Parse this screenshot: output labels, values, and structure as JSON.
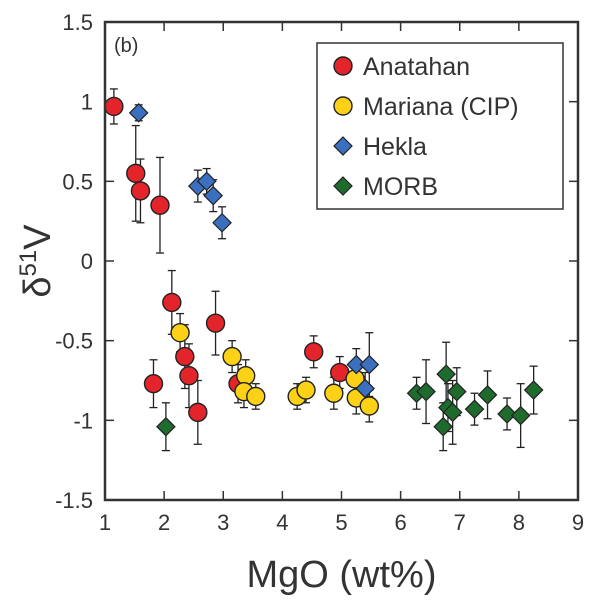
{
  "chart_data": {
    "type": "scatter",
    "panel_label": "(b)",
    "xlabel": "MgO (wt%)",
    "ylabel_base": "δ",
    "ylabel_sup": "51",
    "ylabel_tail": "V",
    "xlim": [
      1,
      9
    ],
    "ylim": [
      -1.5,
      1.5
    ],
    "x_ticks": [
      1,
      2,
      3,
      4,
      5,
      6,
      7,
      8,
      9
    ],
    "y_ticks": [
      -1.5,
      -1,
      -0.5,
      0,
      0.5,
      1,
      1.5
    ],
    "x_tick_labels": [
      "1",
      "2",
      "3",
      "4",
      "5",
      "6",
      "7",
      "8",
      "9"
    ],
    "y_tick_labels": [
      "-1.5",
      "-1",
      "-0.5",
      "0",
      "0.5",
      "1",
      "1.5"
    ],
    "legend_position": "top-right",
    "series": [
      {
        "name": "Anatahan",
        "marker": "circle",
        "color": "#e3242b",
        "points": [
          {
            "x": 1.15,
            "y": 0.97,
            "err": 0.11
          },
          {
            "x": 1.52,
            "y": 0.55,
            "err": 0.3
          },
          {
            "x": 1.6,
            "y": 0.44,
            "err": 0.2
          },
          {
            "x": 1.93,
            "y": 0.35,
            "err": 0.3
          },
          {
            "x": 2.13,
            "y": -0.26,
            "err": 0.2
          },
          {
            "x": 2.87,
            "y": -0.39,
            "err": 0.2
          },
          {
            "x": 2.35,
            "y": -0.6,
            "err": 0.2
          },
          {
            "x": 2.42,
            "y": -0.72,
            "err": 0.2
          },
          {
            "x": 1.82,
            "y": -0.77,
            "err": 0.15
          },
          {
            "x": 2.57,
            "y": -0.95,
            "err": 0.2
          },
          {
            "x": 3.25,
            "y": -0.77,
            "err": 0.12
          },
          {
            "x": 4.53,
            "y": -0.57,
            "err": 0.1
          },
          {
            "x": 4.97,
            "y": -0.7,
            "err": 0.1
          }
        ]
      },
      {
        "name": "Mariana (CIP)",
        "marker": "circle",
        "color": "#fcd116",
        "points": [
          {
            "x": 2.27,
            "y": -0.45,
            "err": 0.12
          },
          {
            "x": 3.15,
            "y": -0.6,
            "err": 0.1
          },
          {
            "x": 3.38,
            "y": -0.72,
            "err": 0.1
          },
          {
            "x": 3.35,
            "y": -0.82,
            "err": 0.1
          },
          {
            "x": 3.55,
            "y": -0.85,
            "err": 0.08
          },
          {
            "x": 4.25,
            "y": -0.85,
            "err": 0.08
          },
          {
            "x": 4.4,
            "y": -0.81,
            "err": 0.08
          },
          {
            "x": 4.87,
            "y": -0.83,
            "err": 0.1
          },
          {
            "x": 5.23,
            "y": -0.74,
            "err": 0.1
          },
          {
            "x": 5.25,
            "y": -0.86,
            "err": 0.1
          },
          {
            "x": 5.47,
            "y": -0.91,
            "err": 0.1
          }
        ]
      },
      {
        "name": "Hekla",
        "marker": "diamond",
        "color": "#3b6fbf",
        "points": [
          {
            "x": 1.57,
            "y": 0.93,
            "err": 0.05
          },
          {
            "x": 2.57,
            "y": 0.47,
            "err": 0.1
          },
          {
            "x": 2.72,
            "y": 0.5,
            "err": 0.08
          },
          {
            "x": 2.83,
            "y": 0.41,
            "err": 0.1
          },
          {
            "x": 2.98,
            "y": 0.24,
            "err": 0.1
          },
          {
            "x": 5.25,
            "y": -0.65,
            "err": 0.1
          },
          {
            "x": 5.47,
            "y": -0.65,
            "err": 0.2
          },
          {
            "x": 5.4,
            "y": -0.8,
            "err": 0.1
          }
        ]
      },
      {
        "name": "MORB",
        "marker": "diamond",
        "color": "#1f6b2e",
        "points": [
          {
            "x": 2.03,
            "y": -1.04,
            "err": 0.15
          },
          {
            "x": 6.27,
            "y": -0.83,
            "err": 0.1
          },
          {
            "x": 6.43,
            "y": -0.82,
            "err": 0.2
          },
          {
            "x": 6.72,
            "y": -1.04,
            "err": 0.15
          },
          {
            "x": 6.77,
            "y": -0.71,
            "err": 0.2
          },
          {
            "x": 6.8,
            "y": -0.92,
            "err": 0.15
          },
          {
            "x": 6.88,
            "y": -0.95,
            "err": 0.2
          },
          {
            "x": 6.95,
            "y": -0.82,
            "err": 0.15
          },
          {
            "x": 7.25,
            "y": -0.93,
            "err": 0.1
          },
          {
            "x": 7.47,
            "y": -0.84,
            "err": 0.15
          },
          {
            "x": 7.8,
            "y": -0.96,
            "err": 0.1
          },
          {
            "x": 8.03,
            "y": -0.97,
            "err": 0.2
          },
          {
            "x": 8.25,
            "y": -0.81,
            "err": 0.15
          }
        ]
      }
    ]
  }
}
